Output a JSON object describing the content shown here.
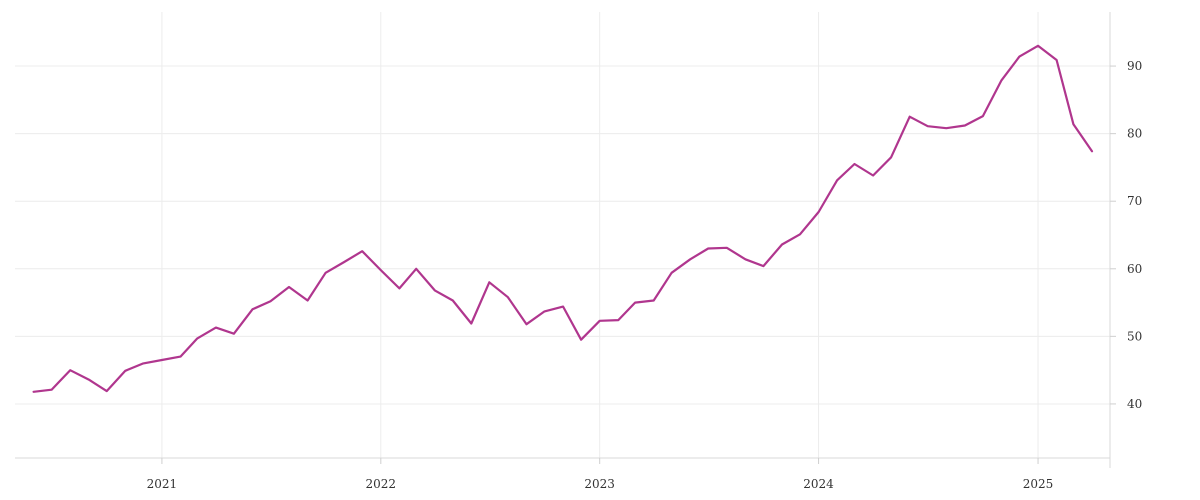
{
  "chart_data": {
    "type": "line",
    "title": "",
    "xlabel": "",
    "ylabel": "",
    "x_ticks": [
      "2021",
      "2022",
      "2023",
      "2024",
      "2025"
    ],
    "y_ticks": [
      40,
      50,
      60,
      70,
      80,
      90
    ],
    "ylim": [
      32,
      98
    ],
    "xlim": [
      "2020-05-01",
      "2025-05-01"
    ],
    "y_axis_side": "right",
    "grid": true,
    "legend": "none",
    "colors": {
      "series": "#b0368e",
      "grid": "#ececec",
      "text": "#333333"
    },
    "series": [
      {
        "x": [
          "2020-06-01",
          "2020-07-01",
          "2020-08-01",
          "2020-09-01",
          "2020-10-01",
          "2020-11-01",
          "2020-12-01",
          "2021-01-01",
          "2021-02-01",
          "2021-03-01",
          "2021-04-01",
          "2021-05-01",
          "2021-06-01",
          "2021-07-01",
          "2021-08-01",
          "2021-09-01",
          "2021-10-01",
          "2021-11-01",
          "2021-12-01",
          "2022-01-01",
          "2022-02-01",
          "2022-03-01",
          "2022-04-01",
          "2022-05-01",
          "2022-06-01",
          "2022-07-01",
          "2022-08-01",
          "2022-09-01",
          "2022-10-01",
          "2022-11-01",
          "2022-12-01",
          "2023-01-01",
          "2023-02-01",
          "2023-03-01",
          "2023-04-01",
          "2023-05-01",
          "2023-06-01",
          "2023-07-01",
          "2023-08-01",
          "2023-09-01",
          "2023-10-01",
          "2023-11-01",
          "2023-12-01",
          "2024-01-01",
          "2024-02-01",
          "2024-03-01",
          "2024-04-01",
          "2024-05-01",
          "2024-06-01",
          "2024-07-01",
          "2024-08-01",
          "2024-09-01",
          "2024-10-01",
          "2024-11-01",
          "2024-12-01",
          "2025-01-01",
          "2025-02-01",
          "2025-03-01",
          "2025-04-01"
        ],
        "values": [
          41.8,
          42.1,
          45.0,
          43.6,
          41.9,
          44.9,
          46.0,
          46.5,
          47.0,
          49.7,
          51.3,
          50.4,
          54.0,
          55.2,
          57.3,
          55.3,
          59.4,
          61.0,
          62.6,
          59.8,
          57.1,
          60.0,
          56.8,
          55.3,
          51.9,
          58.0,
          55.8,
          51.8,
          53.7,
          54.4,
          49.5,
          52.3,
          52.4,
          55.0,
          55.3,
          59.4,
          61.4,
          63.0,
          63.1,
          61.4,
          60.4,
          63.6,
          65.1,
          68.4,
          73.1,
          75.5,
          73.8,
          76.5,
          82.5,
          81.1,
          80.8,
          81.2,
          82.6,
          87.9,
          91.4,
          93.0,
          90.9,
          81.4,
          77.4
        ]
      }
    ]
  }
}
